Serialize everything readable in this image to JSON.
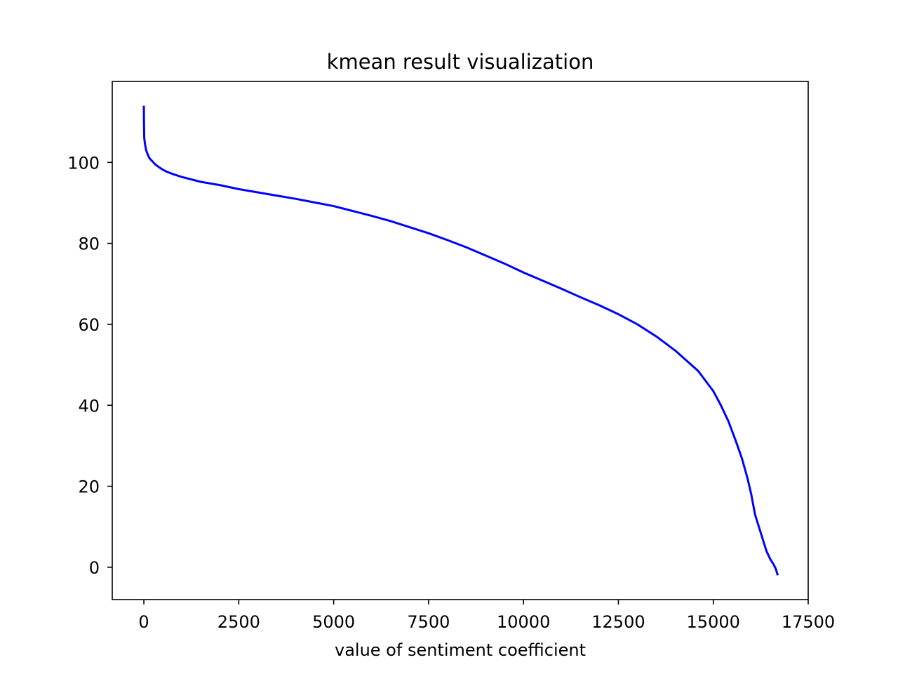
{
  "chart_data": {
    "type": "line",
    "title": "kmean result visualization",
    "xlabel": "value of sentiment coefficient",
    "ylabel": "",
    "xlim": [
      -833,
      17500
    ],
    "ylim": [
      -8,
      120
    ],
    "xticks": [
      0,
      2500,
      5000,
      7500,
      10000,
      12500,
      15000,
      17500
    ],
    "yticks": [
      0,
      20,
      40,
      60,
      80,
      100
    ],
    "grid": false,
    "legend": "none",
    "series": [
      {
        "color": "#0000ff",
        "x": [
          0,
          3,
          10,
          30,
          60,
          100,
          150,
          200,
          300,
          400,
          500,
          600,
          800,
          1000,
          1500,
          2000,
          2500,
          3000,
          3500,
          4000,
          4500,
          5000,
          5500,
          6000,
          6500,
          7000,
          7500,
          8000,
          8500,
          9000,
          9500,
          10000,
          10500,
          11000,
          11500,
          12000,
          12500,
          13000,
          13500,
          14000,
          14300,
          14600,
          14800,
          15000,
          15200,
          15400,
          15600,
          15750,
          15900,
          16000,
          16100,
          16200,
          16300,
          16400,
          16500,
          16600,
          16650,
          16680,
          16700
        ],
        "y": [
          114,
          110,
          106,
          104.5,
          103,
          102,
          101,
          100.5,
          99.5,
          98.8,
          98.2,
          97.7,
          97,
          96.4,
          95.2,
          94.4,
          93.4,
          92.6,
          91.8,
          91,
          90.1,
          89.2,
          88,
          86.8,
          85.5,
          84,
          82.5,
          80.8,
          79,
          77,
          75,
          72.8,
          70.8,
          68.8,
          66.7,
          64.7,
          62.5,
          60,
          57,
          53.5,
          51,
          48.5,
          46,
          43.5,
          40,
          36,
          31,
          27,
          22,
          18,
          13,
          10,
          7,
          4,
          2,
          0.5,
          -0.5,
          -1.5,
          -2
        ]
      }
    ]
  }
}
